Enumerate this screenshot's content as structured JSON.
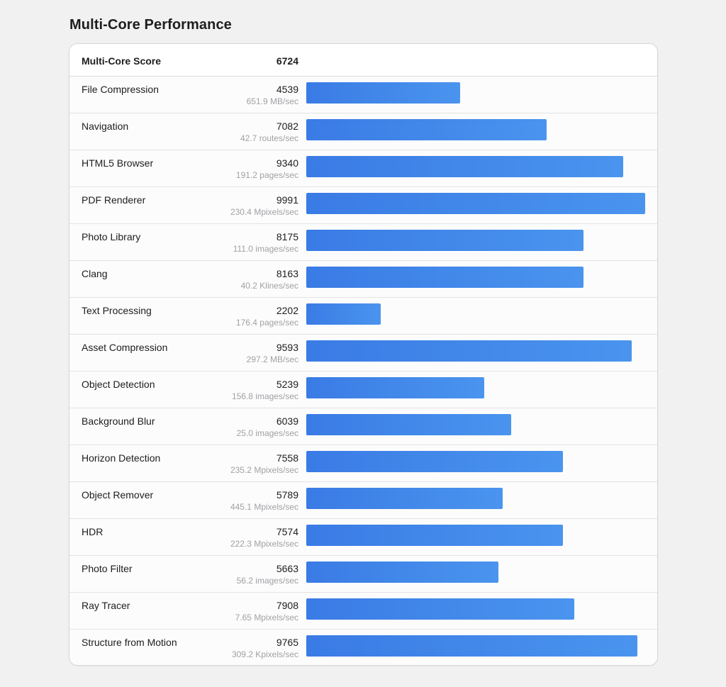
{
  "page": {
    "title": "Multi-Core Performance"
  },
  "summary": {
    "label": "Multi-Core Score",
    "score": "6724"
  },
  "colors": {
    "bar_start": "#3a7be5",
    "bar_end": "#4a94ee",
    "rate_text": "#a1a1a6"
  },
  "chart_data": {
    "type": "bar",
    "orientation": "horizontal",
    "title": "Multi-Core Performance",
    "xlim": [
      0,
      9991
    ],
    "categories": [
      "File Compression",
      "Navigation",
      "HTML5 Browser",
      "PDF Renderer",
      "Photo Library",
      "Clang",
      "Text Processing",
      "Asset Compression",
      "Object Detection",
      "Background Blur",
      "Horizon Detection",
      "Object Remover",
      "HDR",
      "Photo Filter",
      "Ray Tracer",
      "Structure from Motion"
    ],
    "values": [
      4539,
      7082,
      9340,
      9991,
      8175,
      8163,
      2202,
      9593,
      5239,
      6039,
      7558,
      5789,
      7574,
      5663,
      7908,
      9765
    ],
    "rates": [
      "651.9 MB/sec",
      "42.7 routes/sec",
      "191.2 pages/sec",
      "230.4 Mpixels/sec",
      "111.0 images/sec",
      "40.2 Klines/sec",
      "176.4 pages/sec",
      "297.2 MB/sec",
      "156.8 images/sec",
      "25.0 images/sec",
      "235.2 Mpixels/sec",
      "445.1 Mpixels/sec",
      "222.3 Mpixels/sec",
      "56.2 images/sec",
      "7.65 Mpixels/sec",
      "309.2 Kpixels/sec"
    ]
  }
}
